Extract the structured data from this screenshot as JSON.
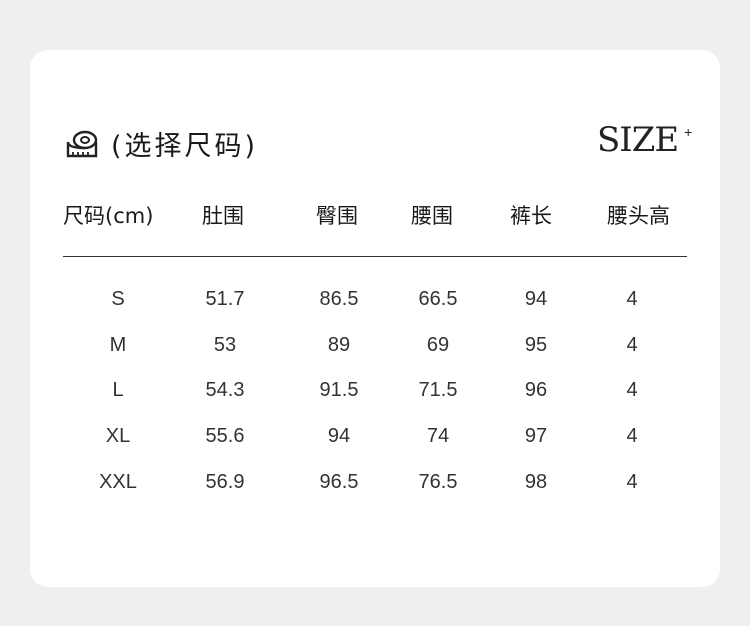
{
  "title": "(选择尺码)",
  "brand": {
    "text": "SIZE",
    "suffix": "+"
  },
  "icon": "measuring-tape-icon",
  "table": {
    "headers": [
      "尺码(cm)",
      "肚围",
      "臀围",
      "腰围",
      "裤长",
      "腰头高"
    ],
    "rows": [
      [
        "S",
        "51.7",
        "86.5",
        "66.5",
        "94",
        "4"
      ],
      [
        "M",
        "53",
        "89",
        "69",
        "95",
        "4"
      ],
      [
        "L",
        "54.3",
        "91.5",
        "71.5",
        "96",
        "4"
      ],
      [
        "XL",
        "55.6",
        "94",
        "74",
        "97",
        "4"
      ],
      [
        "XXL",
        "56.9",
        "96.5",
        "76.5",
        "98",
        "4"
      ]
    ]
  }
}
